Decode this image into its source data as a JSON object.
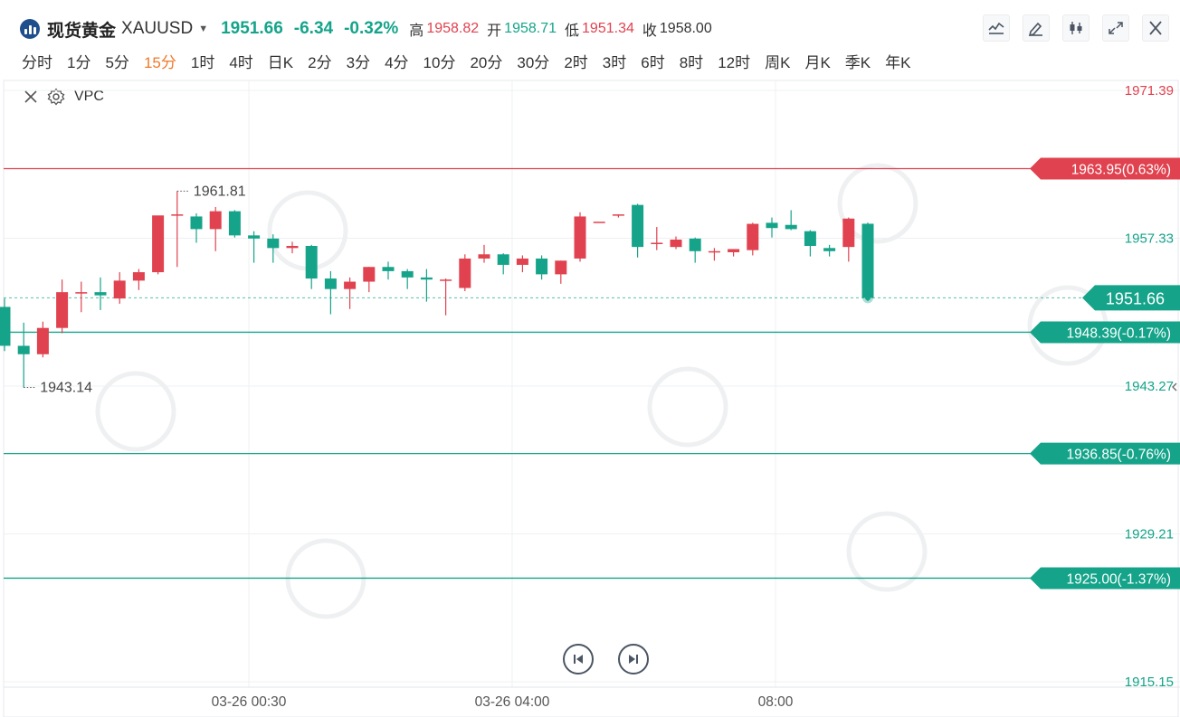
{
  "quote": {
    "name": "现货黄金",
    "code": "XAUUSD",
    "price": "1951.66",
    "change": "-6.34",
    "change_pct": "-0.32%",
    "high_label": "高",
    "high": "1958.82",
    "open_label": "开",
    "open": "1958.71",
    "low_label": "低",
    "low": "1951.34",
    "close_label": "收",
    "close": "1958.00"
  },
  "toolbar": {
    "icons": [
      "line-type-icon",
      "draw-pen-icon",
      "candle-type-icon",
      "fullscreen-icon",
      "close-icon"
    ]
  },
  "intervals": [
    {
      "label": "分时"
    },
    {
      "label": "1分"
    },
    {
      "label": "5分"
    },
    {
      "label": "15分",
      "active": true
    },
    {
      "label": "1时"
    },
    {
      "label": "4时"
    },
    {
      "label": "日K"
    },
    {
      "label": "2分"
    },
    {
      "label": "3分"
    },
    {
      "label": "4分"
    },
    {
      "label": "10分"
    },
    {
      "label": "20分"
    },
    {
      "label": "30分"
    },
    {
      "label": "2时"
    },
    {
      "label": "3时"
    },
    {
      "label": "6时"
    },
    {
      "label": "8时"
    },
    {
      "label": "12时"
    },
    {
      "label": "周K"
    },
    {
      "label": "月K"
    },
    {
      "label": "季K"
    },
    {
      "label": "年K"
    }
  ],
  "indicator": {
    "label": "VPC"
  },
  "colors": {
    "up": "#e0424f",
    "down": "#15a48a",
    "active_interval": "#f0792b",
    "grid": "#eef0f3"
  },
  "chart_data": {
    "type": "candlestick",
    "y_axis_ticks": [
      "1971.39",
      "1957.33",
      "1943.27",
      "1929.21",
      "1915.15"
    ],
    "x_axis_ticks": [
      "03-26 00:30",
      "03-26 04:00",
      "08:00"
    ],
    "ylim": [
      1915.15,
      1971.39
    ],
    "max_label": "1961.81",
    "min_label": "1943.14",
    "last_price": "1951.66",
    "ref_lines": [
      {
        "price": 1963.95,
        "label": "1963.95(0.63%)",
        "color": "#e0424f"
      },
      {
        "price": 1948.39,
        "label": "1948.39(-0.17%)",
        "color": "#15a48a"
      },
      {
        "price": 1936.85,
        "label": "1936.85(-0.76%)",
        "color": "#15a48a"
      },
      {
        "price": 1925.0,
        "label": "1925.00(-1.37%)",
        "color": "#15a48a"
      }
    ],
    "candles": [
      {
        "o": 1950.8,
        "h": 1951.6,
        "l": 1946.6,
        "c": 1947.1
      },
      {
        "o": 1947.1,
        "h": 1949.3,
        "l": 1943.14,
        "c": 1946.3
      },
      {
        "o": 1946.3,
        "h": 1949.4,
        "l": 1946.0,
        "c": 1948.8
      },
      {
        "o": 1948.8,
        "h": 1953.4,
        "l": 1948.3,
        "c": 1952.2
      },
      {
        "o": 1952.2,
        "h": 1953.2,
        "l": 1950.3,
        "c": 1952.2
      },
      {
        "o": 1952.2,
        "h": 1953.6,
        "l": 1950.5,
        "c": 1951.9
      },
      {
        "o": 1951.6,
        "h": 1954.1,
        "l": 1951.1,
        "c": 1953.3
      },
      {
        "o": 1953.3,
        "h": 1954.4,
        "l": 1952.4,
        "c": 1954.1
      },
      {
        "o": 1954.1,
        "h": 1959.1,
        "l": 1953.9,
        "c": 1959.5
      },
      {
        "o": 1959.5,
        "h": 1961.81,
        "l": 1954.6,
        "c": 1959.6
      },
      {
        "o": 1959.4,
        "h": 1959.7,
        "l": 1956.9,
        "c": 1958.2
      },
      {
        "o": 1958.2,
        "h": 1960.3,
        "l": 1956.1,
        "c": 1959.9
      },
      {
        "o": 1959.9,
        "h": 1960.0,
        "l": 1957.4,
        "c": 1957.6
      },
      {
        "o": 1957.6,
        "h": 1958.0,
        "l": 1955.0,
        "c": 1957.3
      },
      {
        "o": 1957.3,
        "h": 1957.7,
        "l": 1955.0,
        "c": 1956.4
      },
      {
        "o": 1956.4,
        "h": 1957.0,
        "l": 1955.9,
        "c": 1956.6
      },
      {
        "o": 1956.6,
        "h": 1956.7,
        "l": 1952.5,
        "c": 1953.5
      },
      {
        "o": 1953.5,
        "h": 1954.2,
        "l": 1950.1,
        "c": 1952.5
      },
      {
        "o": 1952.5,
        "h": 1953.6,
        "l": 1950.6,
        "c": 1953.2
      },
      {
        "o": 1953.2,
        "h": 1954.6,
        "l": 1952.2,
        "c": 1954.6
      },
      {
        "o": 1954.6,
        "h": 1955.1,
        "l": 1953.4,
        "c": 1954.2
      },
      {
        "o": 1954.2,
        "h": 1954.4,
        "l": 1952.5,
        "c": 1953.6
      },
      {
        "o": 1953.6,
        "h": 1954.4,
        "l": 1951.3,
        "c": 1953.4
      },
      {
        "o": 1953.4,
        "h": 1953.5,
        "l": 1950.0,
        "c": 1953.4
      },
      {
        "o": 1952.6,
        "h": 1955.8,
        "l": 1952.3,
        "c": 1955.4
      },
      {
        "o": 1955.4,
        "h": 1956.7,
        "l": 1955.0,
        "c": 1955.8
      },
      {
        "o": 1955.8,
        "h": 1955.9,
        "l": 1953.9,
        "c": 1954.8
      },
      {
        "o": 1954.8,
        "h": 1955.7,
        "l": 1954.1,
        "c": 1955.4
      },
      {
        "o": 1955.4,
        "h": 1955.7,
        "l": 1953.4,
        "c": 1953.9
      },
      {
        "o": 1953.9,
        "h": 1955.2,
        "l": 1953.0,
        "c": 1955.2
      },
      {
        "o": 1955.4,
        "h": 1959.8,
        "l": 1955.1,
        "c": 1959.4
      },
      {
        "o": 1958.9,
        "h": 1958.9,
        "l": 1958.9,
        "c": 1958.9
      },
      {
        "o": 1959.5,
        "h": 1959.6,
        "l": 1959.3,
        "c": 1959.6
      },
      {
        "o": 1960.5,
        "h": 1960.6,
        "l": 1955.5,
        "c": 1956.5
      },
      {
        "o": 1956.9,
        "h": 1958.4,
        "l": 1956.2,
        "c": 1956.9
      },
      {
        "o": 1956.5,
        "h": 1957.5,
        "l": 1956.3,
        "c": 1957.2
      },
      {
        "o": 1957.3,
        "h": 1957.4,
        "l": 1955.0,
        "c": 1956.1
      },
      {
        "o": 1956.1,
        "h": 1956.4,
        "l": 1955.2,
        "c": 1956.1
      },
      {
        "o": 1956.0,
        "h": 1956.3,
        "l": 1955.6,
        "c": 1956.3
      },
      {
        "o": 1956.2,
        "h": 1958.8,
        "l": 1955.7,
        "c": 1958.7
      },
      {
        "o": 1958.8,
        "h": 1959.3,
        "l": 1957.4,
        "c": 1958.3
      },
      {
        "o": 1958.6,
        "h": 1960.0,
        "l": 1958.1,
        "c": 1958.2
      },
      {
        "o": 1958.0,
        "h": 1958.1,
        "l": 1955.6,
        "c": 1956.6
      },
      {
        "o": 1956.4,
        "h": 1956.7,
        "l": 1955.6,
        "c": 1956.1
      },
      {
        "o": 1956.5,
        "h": 1959.3,
        "l": 1955.1,
        "c": 1959.2
      },
      {
        "o": 1958.71,
        "h": 1958.82,
        "l": 1951.34,
        "c": 1951.66
      }
    ]
  }
}
